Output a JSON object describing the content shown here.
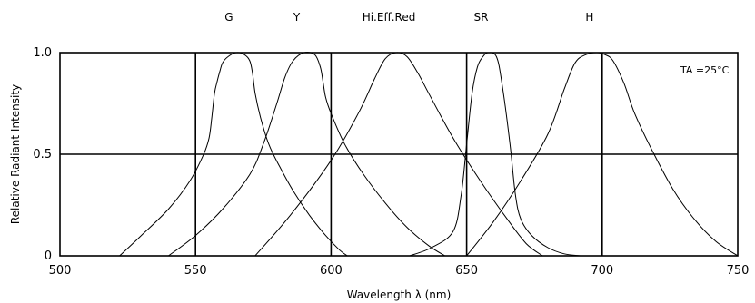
{
  "chart_data": {
    "type": "line",
    "xlabel": "Wavelength λ (nm)",
    "ylabel": "Relative Radiant Intensity",
    "xlim": [
      500,
      750
    ],
    "ylim": [
      0,
      1.0
    ],
    "x_ticks": [
      "500",
      "550",
      "600",
      "650",
      "700",
      "750"
    ],
    "y_ticks": [
      "0",
      "0.5",
      "1.0"
    ],
    "grid_x": [
      550,
      600,
      650,
      700
    ],
    "grid_y": [
      0.5
    ],
    "annotation": "TA =25°C",
    "series": [
      {
        "name": "G",
        "x": [
          522,
          530,
          540,
          548,
          553,
          555,
          556,
          557,
          558,
          559,
          560,
          562,
          565,
          568,
          570,
          571,
          572,
          574,
          577,
          581,
          586,
          592,
          598,
          603,
          606
        ],
        "y": [
          0,
          0.1,
          0.23,
          0.37,
          0.5,
          0.58,
          0.68,
          0.8,
          0.86,
          0.91,
          0.95,
          0.98,
          1.0,
          0.99,
          0.96,
          0.9,
          0.8,
          0.68,
          0.55,
          0.44,
          0.32,
          0.2,
          0.1,
          0.03,
          0
        ]
      },
      {
        "name": "Y",
        "x": [
          540,
          550,
          560,
          570,
          575,
          580,
          583,
          586,
          590,
          594,
          596,
          597,
          598,
          600,
          605,
          612,
          620,
          628,
          636,
          642
        ],
        "y": [
          0,
          0.1,
          0.23,
          0.4,
          0.55,
          0.75,
          0.88,
          0.96,
          1.0,
          0.99,
          0.93,
          0.86,
          0.78,
          0.7,
          0.55,
          0.4,
          0.26,
          0.14,
          0.05,
          0
        ]
      },
      {
        "name": "Hi.Eff.Red",
        "x": [
          572,
          585,
          600,
          610,
          616,
          620,
          624,
          628,
          632,
          636,
          645,
          655,
          665,
          672,
          678
        ],
        "y": [
          0,
          0.2,
          0.47,
          0.7,
          0.87,
          0.97,
          1.0,
          0.98,
          0.9,
          0.8,
          0.58,
          0.37,
          0.18,
          0.06,
          0
        ]
      },
      {
        "name": "SR",
        "x": [
          629,
          637,
          645,
          648,
          650,
          652,
          654,
          656,
          658,
          661,
          663,
          666,
          668,
          670,
          674,
          680,
          686,
          692
        ],
        "y": [
          0,
          0.04,
          0.12,
          0.3,
          0.55,
          0.8,
          0.93,
          0.98,
          1.0,
          0.98,
          0.85,
          0.55,
          0.3,
          0.18,
          0.1,
          0.04,
          0.01,
          0
        ]
      },
      {
        "name": "H",
        "x": [
          650,
          660,
          670,
          680,
          686,
          690,
          694,
          698,
          701,
          704,
          708,
          712,
          718,
          726,
          734,
          742,
          750
        ],
        "y": [
          0,
          0.17,
          0.37,
          0.6,
          0.82,
          0.95,
          0.99,
          1.0,
          0.99,
          0.96,
          0.85,
          0.7,
          0.53,
          0.33,
          0.18,
          0.07,
          0
        ]
      }
    ]
  }
}
